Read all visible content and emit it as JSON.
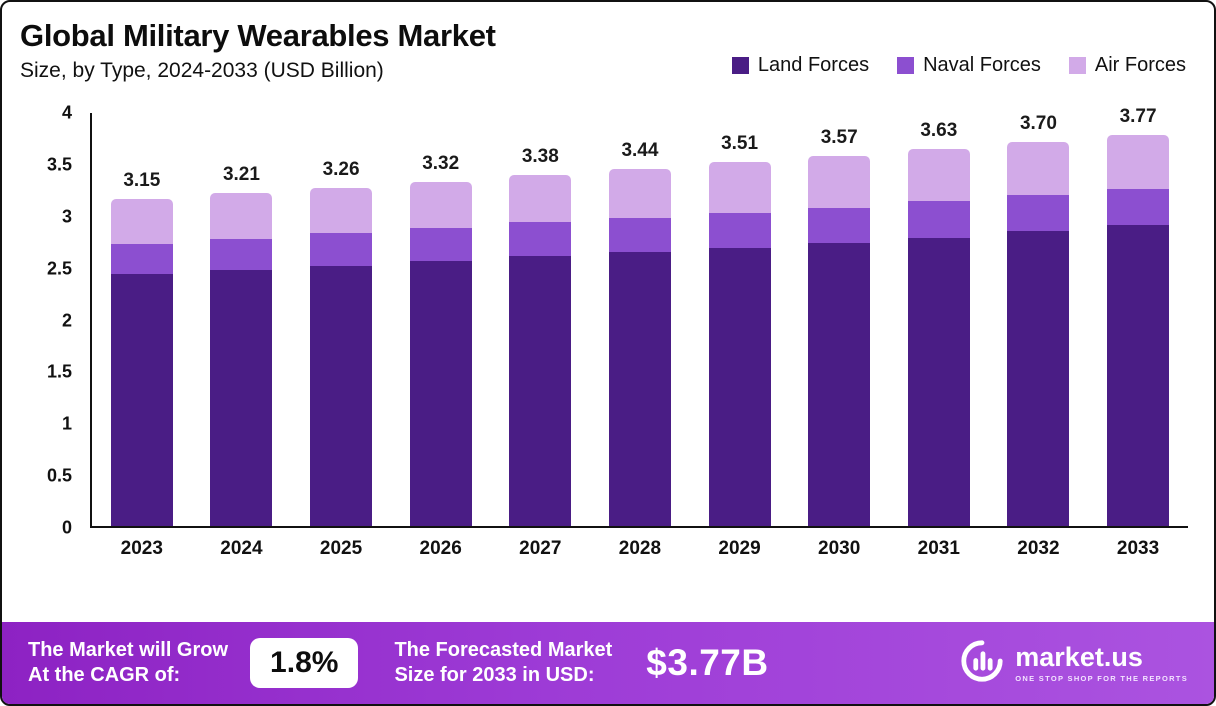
{
  "header": {
    "title": "Global Military Wearables Market",
    "subtitle": "Size, by Type, 2024-2033 (USD Billion)"
  },
  "legend": [
    {
      "label": "Land Forces",
      "color": "#4a1d85"
    },
    {
      "label": "Naval Forces",
      "color": "#8c4fd0"
    },
    {
      "label": "Air Forces",
      "color": "#d2aae8"
    }
  ],
  "chart_data": {
    "type": "bar",
    "stacked": true,
    "title": "Global Military Wearables Market Size, by Type, 2024-2033 (USD Billion)",
    "categories": [
      "2023",
      "2024",
      "2025",
      "2026",
      "2027",
      "2028",
      "2029",
      "2030",
      "2031",
      "2032",
      "2033"
    ],
    "series": [
      {
        "name": "Land Forces",
        "color": "#4a1d85",
        "values": [
          2.43,
          2.47,
          2.51,
          2.55,
          2.6,
          2.64,
          2.68,
          2.73,
          2.78,
          2.84,
          2.9
        ]
      },
      {
        "name": "Naval Forces",
        "color": "#8c4fd0",
        "values": [
          0.29,
          0.3,
          0.31,
          0.32,
          0.33,
          0.33,
          0.34,
          0.34,
          0.35,
          0.35,
          0.35
        ]
      },
      {
        "name": "Air Forces",
        "color": "#d2aae8",
        "values": [
          0.43,
          0.44,
          0.44,
          0.45,
          0.45,
          0.47,
          0.49,
          0.5,
          0.5,
          0.51,
          0.52
        ]
      }
    ],
    "totals": [
      "3.15",
      "3.21",
      "3.26",
      "3.32",
      "3.38",
      "3.44",
      "3.51",
      "3.57",
      "3.63",
      "3.70",
      "3.77"
    ],
    "ylim": [
      0,
      4
    ],
    "y_ticks": [
      "0",
      "0.5",
      "1",
      "1.5",
      "2",
      "2.5",
      "3",
      "3.5",
      "4"
    ],
    "grid": false,
    "legend_position": "top-right"
  },
  "footer": {
    "cagr_label": "The Market will Grow\nAt the CAGR of:",
    "cagr_value": "1.8%",
    "forecast_label": "The Forecasted Market\nSize for 2033 in USD:",
    "forecast_value": "$3.77B",
    "logo_text": "market.us",
    "logo_tagline": "One Stop Shop For The Reports"
  }
}
